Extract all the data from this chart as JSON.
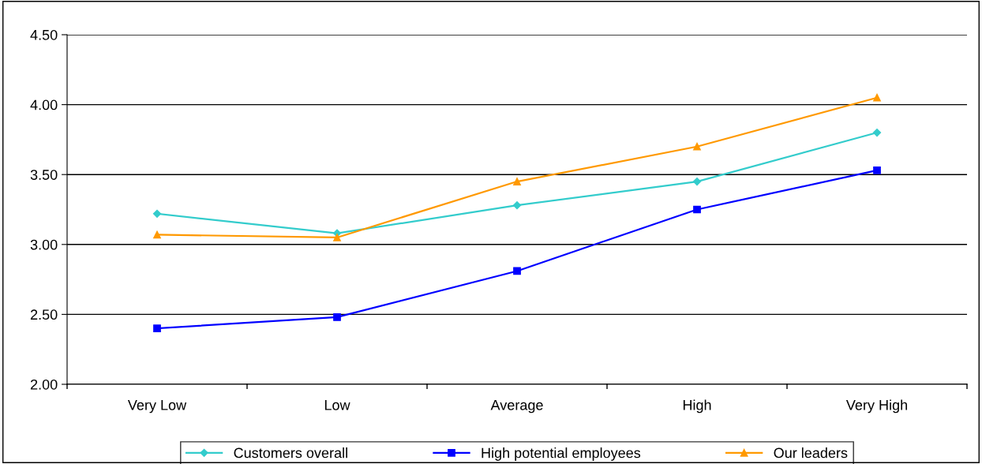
{
  "chart_data": {
    "type": "line",
    "categories": [
      "Very Low",
      "Low",
      "Average",
      "High",
      "Very High"
    ],
    "series": [
      {
        "name": "Customers overall",
        "color": "#33cccc",
        "marker": "diamond",
        "values": [
          3.22,
          3.08,
          3.28,
          3.45,
          3.8
        ]
      },
      {
        "name": "High potential employees",
        "color": "#0000ff",
        "marker": "square",
        "values": [
          2.4,
          2.48,
          2.81,
          3.25,
          3.53
        ]
      },
      {
        "name": "Our leaders",
        "color": "#ff9900",
        "marker": "triangle",
        "values": [
          3.07,
          3.05,
          3.45,
          3.7,
          4.05
        ]
      }
    ],
    "ylim": [
      2.0,
      4.5
    ],
    "yticks": [
      {
        "value": 2.0,
        "label": "2.00"
      },
      {
        "value": 2.5,
        "label": "2.50"
      },
      {
        "value": 3.0,
        "label": "3.00"
      },
      {
        "value": 3.5,
        "label": "3.50"
      },
      {
        "value": 4.0,
        "label": "4.00"
      },
      {
        "value": 4.5,
        "label": "4.50"
      }
    ],
    "grid": "y",
    "legend": "bottom"
  }
}
